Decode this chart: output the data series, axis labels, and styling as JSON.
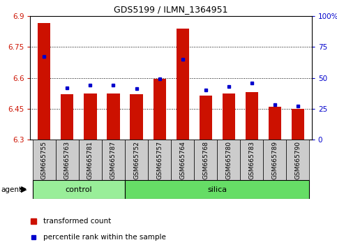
{
  "title": "GDS5199 / ILMN_1364951",
  "samples": [
    "GSM665755",
    "GSM665763",
    "GSM665781",
    "GSM665787",
    "GSM665752",
    "GSM665757",
    "GSM665764",
    "GSM665768",
    "GSM665780",
    "GSM665783",
    "GSM665789",
    "GSM665790"
  ],
  "n_control": 4,
  "n_silica": 8,
  "red_values": [
    6.865,
    6.52,
    6.525,
    6.525,
    6.52,
    6.595,
    6.84,
    6.515,
    6.525,
    6.53,
    6.46,
    6.45
  ],
  "blue_pct": [
    67,
    42,
    44,
    44,
    41,
    49,
    65,
    40,
    43,
    46,
    28,
    27
  ],
  "ylim_left": [
    6.3,
    6.9
  ],
  "ylim_right": [
    0,
    100
  ],
  "yticks_left": [
    6.3,
    6.45,
    6.6,
    6.75,
    6.9
  ],
  "yticks_right": [
    0,
    25,
    50,
    75,
    100
  ],
  "ytick_labels_right": [
    "0",
    "25",
    "50",
    "75",
    "100%"
  ],
  "base_value": 6.3,
  "bar_color": "#cc1100",
  "marker_color": "#0000cc",
  "control_color": "#99ee99",
  "silica_color": "#66dd66",
  "tick_bg_color": "#cccccc",
  "legend_red": "transformed count",
  "legend_blue": "percentile rank within the sample",
  "agent_label": "agent"
}
